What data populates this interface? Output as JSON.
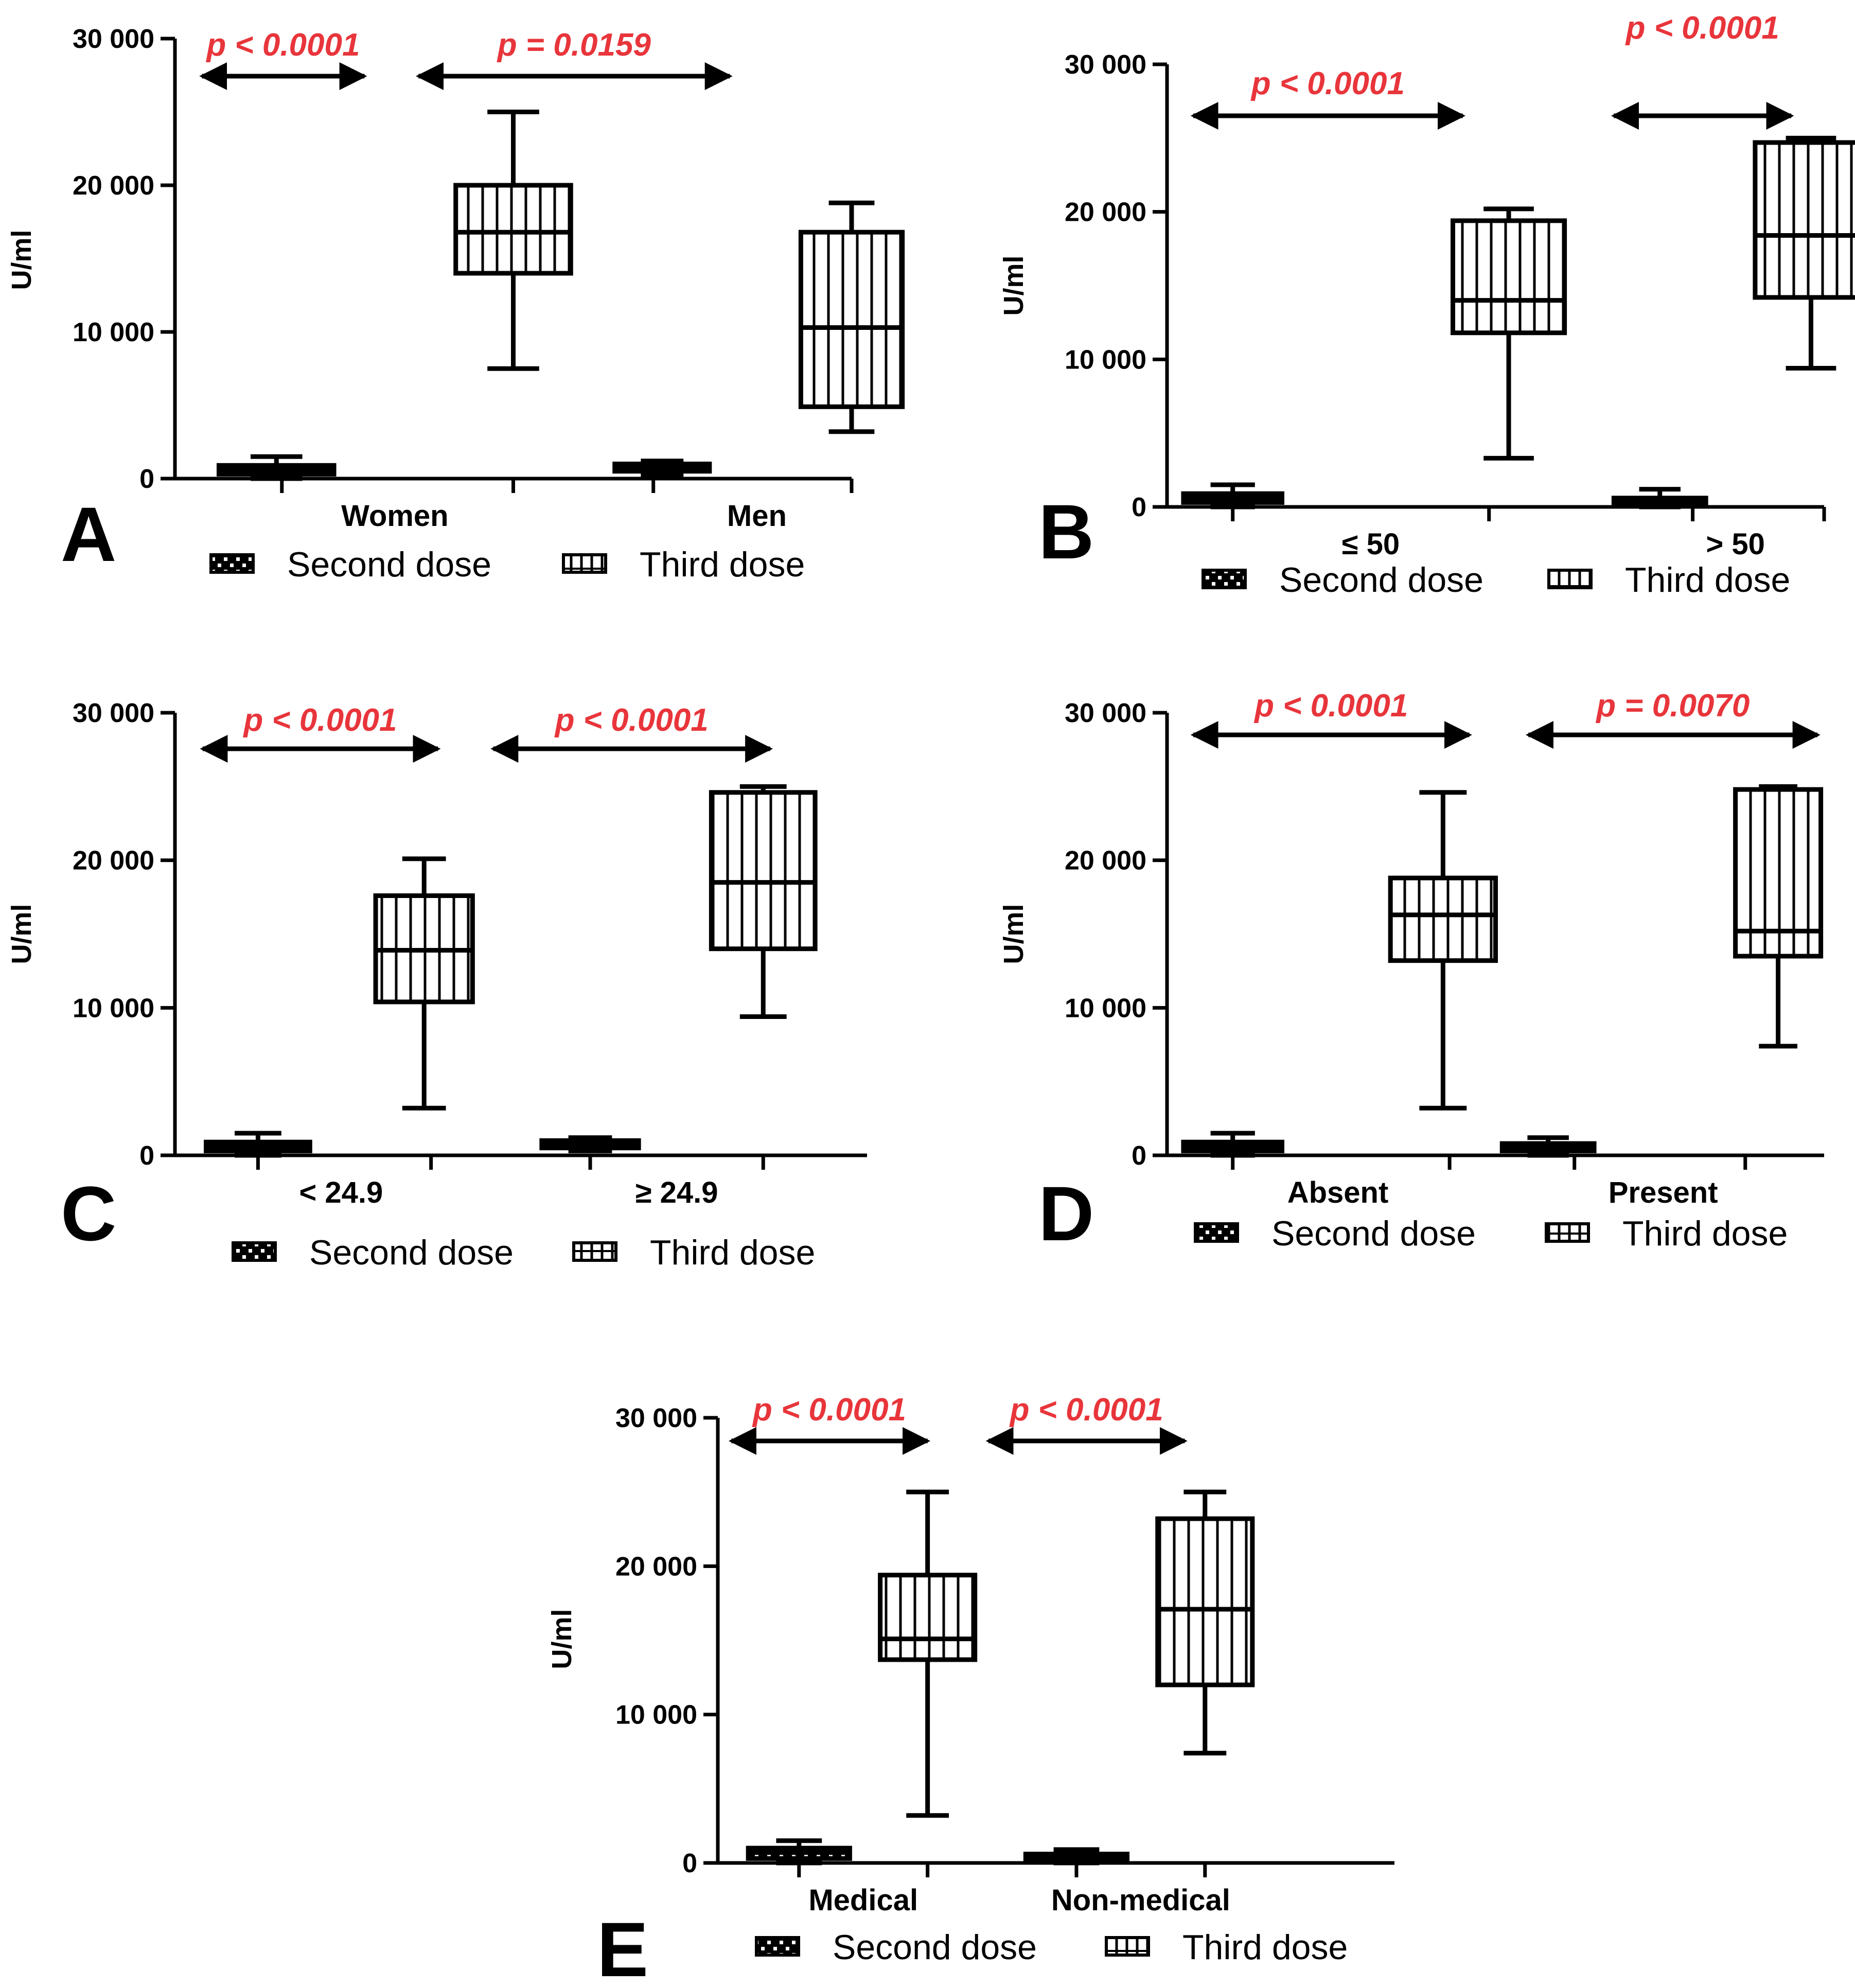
{
  "colors": {
    "ink": "#000000",
    "pvalue": "#e8353b",
    "background": "#ffffff"
  },
  "chart_data": [
    {
      "type": "box",
      "panel": "A",
      "ylabel": "U/ml",
      "ylim": [
        0,
        30000
      ],
      "yticks": [
        0,
        10000,
        20000,
        30000
      ],
      "ytick_labels": [
        "0",
        "10 000",
        "20 000",
        "30 000"
      ],
      "legend": [
        "Second dose",
        "Third dose"
      ],
      "groups": [
        {
          "label": "Women",
          "pvalue": "p < 0.0001",
          "second_dose": {
            "min": 0,
            "q1": 300,
            "median": 600,
            "q3": 900,
            "max": 1500
          },
          "third_dose": {
            "min": 7500,
            "q1": 14000,
            "median": 16800,
            "q3": 20000,
            "max": 25000
          }
        },
        {
          "label": "Men",
          "pvalue": "p = 0.0159",
          "second_dose": {
            "min": 200,
            "q1": 500,
            "median": 800,
            "q3": 1000,
            "max": 1200
          },
          "third_dose": {
            "min": 3200,
            "q1": 4900,
            "median": 10300,
            "q3": 16800,
            "max": 18800
          }
        }
      ]
    },
    {
      "type": "box",
      "panel": "B",
      "ylabel": "U/ml",
      "ylim": [
        0,
        30000
      ],
      "yticks": [
        0,
        10000,
        20000,
        30000
      ],
      "ytick_labels": [
        "0",
        "10 000",
        "20 000",
        "30 000"
      ],
      "legend": [
        "Second dose",
        "Third dose"
      ],
      "groups": [
        {
          "label": "≤ 50",
          "pvalue": "p < 0.0001",
          "second_dose": {
            "min": 0,
            "q1": 300,
            "median": 600,
            "q3": 900,
            "max": 1500
          },
          "third_dose": {
            "min": 3300,
            "q1": 11800,
            "median": 14000,
            "q3": 19400,
            "max": 20200
          }
        },
        {
          "label": "> 50",
          "pvalue": "p < 0.0001",
          "second_dose": {
            "min": 0,
            "q1": 200,
            "median": 400,
            "q3": 600,
            "max": 1200
          },
          "third_dose": {
            "min": 9400,
            "q1": 14200,
            "median": 18400,
            "q3": 24700,
            "max": 25000
          }
        }
      ]
    },
    {
      "type": "box",
      "panel": "C",
      "ylabel": "U/ml",
      "ylim": [
        0,
        30000
      ],
      "yticks": [
        0,
        10000,
        20000,
        30000
      ],
      "ytick_labels": [
        "0",
        "10 000",
        "20 000",
        "30 000"
      ],
      "legend": [
        "Second dose",
        "Third dose"
      ],
      "groups": [
        {
          "label": "< 24.9",
          "pvalue": "p < 0.0001",
          "second_dose": {
            "min": 0,
            "q1": 300,
            "median": 600,
            "q3": 900,
            "max": 1500
          },
          "third_dose": {
            "min": 3200,
            "q1": 10400,
            "median": 13900,
            "q3": 17600,
            "max": 20100
          }
        },
        {
          "label": "≥ 24.9",
          "pvalue": "p < 0.0001",
          "second_dose": {
            "min": 300,
            "q1": 500,
            "median": 800,
            "q3": 1000,
            "max": 1200
          },
          "third_dose": {
            "min": 9400,
            "q1": 14000,
            "median": 18500,
            "q3": 24600,
            "max": 25000
          }
        }
      ]
    },
    {
      "type": "box",
      "panel": "D",
      "ylabel": "U/ml",
      "ylim": [
        0,
        30000
      ],
      "yticks": [
        0,
        10000,
        20000,
        30000
      ],
      "ytick_labels": [
        "0",
        "10 000",
        "20 000",
        "30 000"
      ],
      "legend": [
        "Second dose",
        "Third dose"
      ],
      "groups": [
        {
          "label": "Absent",
          "pvalue": "p < 0.0001",
          "second_dose": {
            "min": 0,
            "q1": 300,
            "median": 600,
            "q3": 900,
            "max": 1500
          },
          "third_dose": {
            "min": 3200,
            "q1": 13200,
            "median": 16300,
            "q3": 18800,
            "max": 24600
          }
        },
        {
          "label": "Present",
          "pvalue": "p = 0.0070",
          "second_dose": {
            "min": 0,
            "q1": 300,
            "median": 600,
            "q3": 800,
            "max": 1200
          },
          "third_dose": {
            "min": 7400,
            "q1": 13500,
            "median": 15200,
            "q3": 24800,
            "max": 25000
          }
        }
      ]
    },
    {
      "type": "box",
      "panel": "E",
      "ylabel": "U/ml",
      "ylim": [
        0,
        30000
      ],
      "yticks": [
        0,
        10000,
        20000,
        30000
      ],
      "ytick_labels": [
        "0",
        "10 000",
        "20 000",
        "30 000"
      ],
      "legend": [
        "Second dose",
        "Third dose"
      ],
      "groups": [
        {
          "label": "Medical",
          "pvalue": "p < 0.0001",
          "second_dose": {
            "min": 0,
            "q1": 300,
            "median": 700,
            "q3": 1000,
            "max": 1500
          },
          "third_dose": {
            "min": 3200,
            "q1": 13700,
            "median": 15100,
            "q3": 19400,
            "max": 25000
          }
        },
        {
          "label": "Non-medical",
          "pvalue": "p < 0.0001",
          "second_dose": {
            "min": 0,
            "q1": 200,
            "median": 400,
            "q3": 600,
            "max": 900
          },
          "third_dose": {
            "min": 7400,
            "q1": 12000,
            "median": 17100,
            "q3": 23200,
            "max": 25000
          }
        }
      ]
    }
  ]
}
